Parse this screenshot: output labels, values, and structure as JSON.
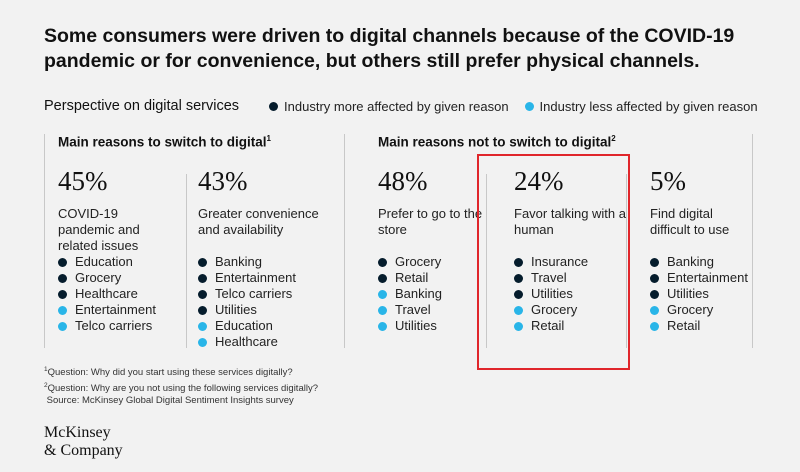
{
  "title": "Some consumers were driven to digital channels because of the COVID-19 pandemic or for convenience, but others still prefer physical channels.",
  "perspective_label": "Perspective on digital services",
  "colors": {
    "more": "#051c2c",
    "less": "#29b5e8",
    "highlight": "#e0262b"
  },
  "legend": {
    "more": "Industry more affected by given reason",
    "less": "Industry less affected by given reason"
  },
  "sections": {
    "switch": {
      "label": "Main reasons to switch to digital",
      "sup": "1"
    },
    "not_switch": {
      "label": "Main reasons not to switch to digital",
      "sup": "2"
    }
  },
  "chart_data": {
    "type": "table",
    "title": "Some consumers were driven to digital channels because of the COVID-19 pandemic or for convenience, but others still prefer physical channels.",
    "columns": [
      {
        "group": "Main reasons to switch to digital",
        "pct_label": "45%",
        "value": 45,
        "reason": "COVID-19 pandemic and related issues",
        "industries": [
          {
            "name": "Education",
            "affect": "more"
          },
          {
            "name": "Grocery",
            "affect": "more"
          },
          {
            "name": "Healthcare",
            "affect": "more"
          },
          {
            "name": "Entertainment",
            "affect": "less"
          },
          {
            "name": "Telco carriers",
            "affect": "less"
          }
        ]
      },
      {
        "group": "Main reasons to switch to digital",
        "pct_label": "43%",
        "value": 43,
        "reason": "Greater convenience and availability",
        "industries": [
          {
            "name": "Banking",
            "affect": "more"
          },
          {
            "name": "Entertainment",
            "affect": "more"
          },
          {
            "name": "Telco carriers",
            "affect": "more"
          },
          {
            "name": "Utilities",
            "affect": "more"
          },
          {
            "name": "Education",
            "affect": "less"
          },
          {
            "name": "Healthcare",
            "affect": "less"
          }
        ]
      },
      {
        "group": "Main reasons not to switch to digital",
        "pct_label": "48%",
        "value": 48,
        "reason": "Prefer to go to the store",
        "industries": [
          {
            "name": "Grocery",
            "affect": "more"
          },
          {
            "name": "Retail",
            "affect": "more"
          },
          {
            "name": "Banking",
            "affect": "less"
          },
          {
            "name": "Travel",
            "affect": "less"
          },
          {
            "name": "Utilities",
            "affect": "less"
          }
        ]
      },
      {
        "group": "Main reasons not to switch to digital",
        "pct_label": "24%",
        "value": 24,
        "reason": "Favor talking with a human",
        "industries": [
          {
            "name": "Insurance",
            "affect": "more"
          },
          {
            "name": "Travel",
            "affect": "more"
          },
          {
            "name": "Utilities",
            "affect": "more"
          },
          {
            "name": "Grocery",
            "affect": "less"
          },
          {
            "name": "Retail",
            "affect": "less"
          }
        ]
      },
      {
        "group": "Main reasons not to switch to digital",
        "pct_label": "5%",
        "value": 5,
        "reason": "Find digital difficult to use",
        "industries": [
          {
            "name": "Banking",
            "affect": "more"
          },
          {
            "name": "Entertainment",
            "affect": "more"
          },
          {
            "name": "Utilities",
            "affect": "more"
          },
          {
            "name": "Grocery",
            "affect": "less"
          },
          {
            "name": "Retail",
            "affect": "less"
          }
        ]
      }
    ]
  },
  "footnotes": [
    {
      "sup": "1",
      "text": "Question: Why did you start using these services digitally?"
    },
    {
      "sup": "2",
      "text": "Question: Why are you not using the following services digitally?"
    },
    {
      "sup": "",
      "text": "Source: McKinsey Global Digital Sentiment Insights survey"
    }
  ],
  "logo": {
    "line1": "McKinsey",
    "line2": "& Company"
  }
}
